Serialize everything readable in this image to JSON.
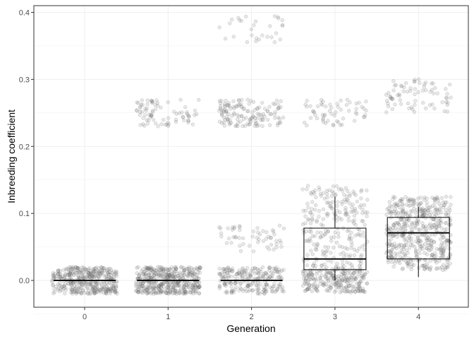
{
  "chart_data": {
    "type": "boxplot",
    "overlay": "jittered points",
    "xlabel": "Generation",
    "ylabel": "Inbreeding coefficient",
    "categories": [
      "0",
      "1",
      "2",
      "3",
      "4"
    ],
    "ylim": [
      -0.04,
      0.41
    ],
    "yticks": [
      0.0,
      0.1,
      0.2,
      0.3,
      0.4
    ],
    "ytick_labels": [
      "0.0",
      "0.1",
      "0.2",
      "0.3",
      "0.4"
    ],
    "grid": true,
    "point_color": "#7f7f7f",
    "box_color": "#000000",
    "panel_border_color": "#333333",
    "grid_color": "#ebebeb",
    "boxes": [
      {
        "category": "0",
        "q1": 0.0,
        "median": 0.0,
        "q3": 0.0,
        "whisker_low": 0.0,
        "whisker_high": 0.0
      },
      {
        "category": "1",
        "q1": 0.0,
        "median": 0.0,
        "q3": 0.0,
        "whisker_low": 0.0,
        "whisker_high": 0.0
      },
      {
        "category": "2",
        "q1": 0.0,
        "median": 0.0,
        "q3": 0.0,
        "whisker_low": 0.0,
        "whisker_high": 0.0
      },
      {
        "category": "3",
        "q1": 0.016,
        "median": 0.032,
        "q3": 0.078,
        "whisker_low": 0.0,
        "whisker_high": 0.125
      },
      {
        "category": "4",
        "q1": 0.032,
        "median": 0.071,
        "q3": 0.094,
        "whisker_low": 0.005,
        "whisker_high": 0.11
      }
    ],
    "point_clusters": [
      {
        "category": "0",
        "center": 0.0,
        "spread": 0.02,
        "count": 400
      },
      {
        "category": "1",
        "center": 0.0,
        "spread": 0.02,
        "count": 450
      },
      {
        "category": "1",
        "center": 0.25,
        "spread": 0.02,
        "count": 80
      },
      {
        "category": "2",
        "center": 0.0,
        "spread": 0.02,
        "count": 230
      },
      {
        "category": "2",
        "center": 0.0625,
        "spread": 0.02,
        "count": 55
      },
      {
        "category": "2",
        "center": 0.25,
        "spread": 0.02,
        "count": 140
      },
      {
        "category": "2",
        "center": 0.375,
        "spread": 0.02,
        "count": 30
      },
      {
        "category": "3",
        "center": 0.0,
        "spread": 0.018,
        "count": 170
      },
      {
        "category": "3",
        "center": 0.0625,
        "spread": 0.08,
        "count": 330
      },
      {
        "category": "3",
        "center": 0.25,
        "spread": 0.02,
        "count": 60
      },
      {
        "category": "4",
        "center": 0.07,
        "spread": 0.055,
        "count": 520
      },
      {
        "category": "4",
        "center": 0.275,
        "spread": 0.025,
        "count": 75
      }
    ]
  }
}
